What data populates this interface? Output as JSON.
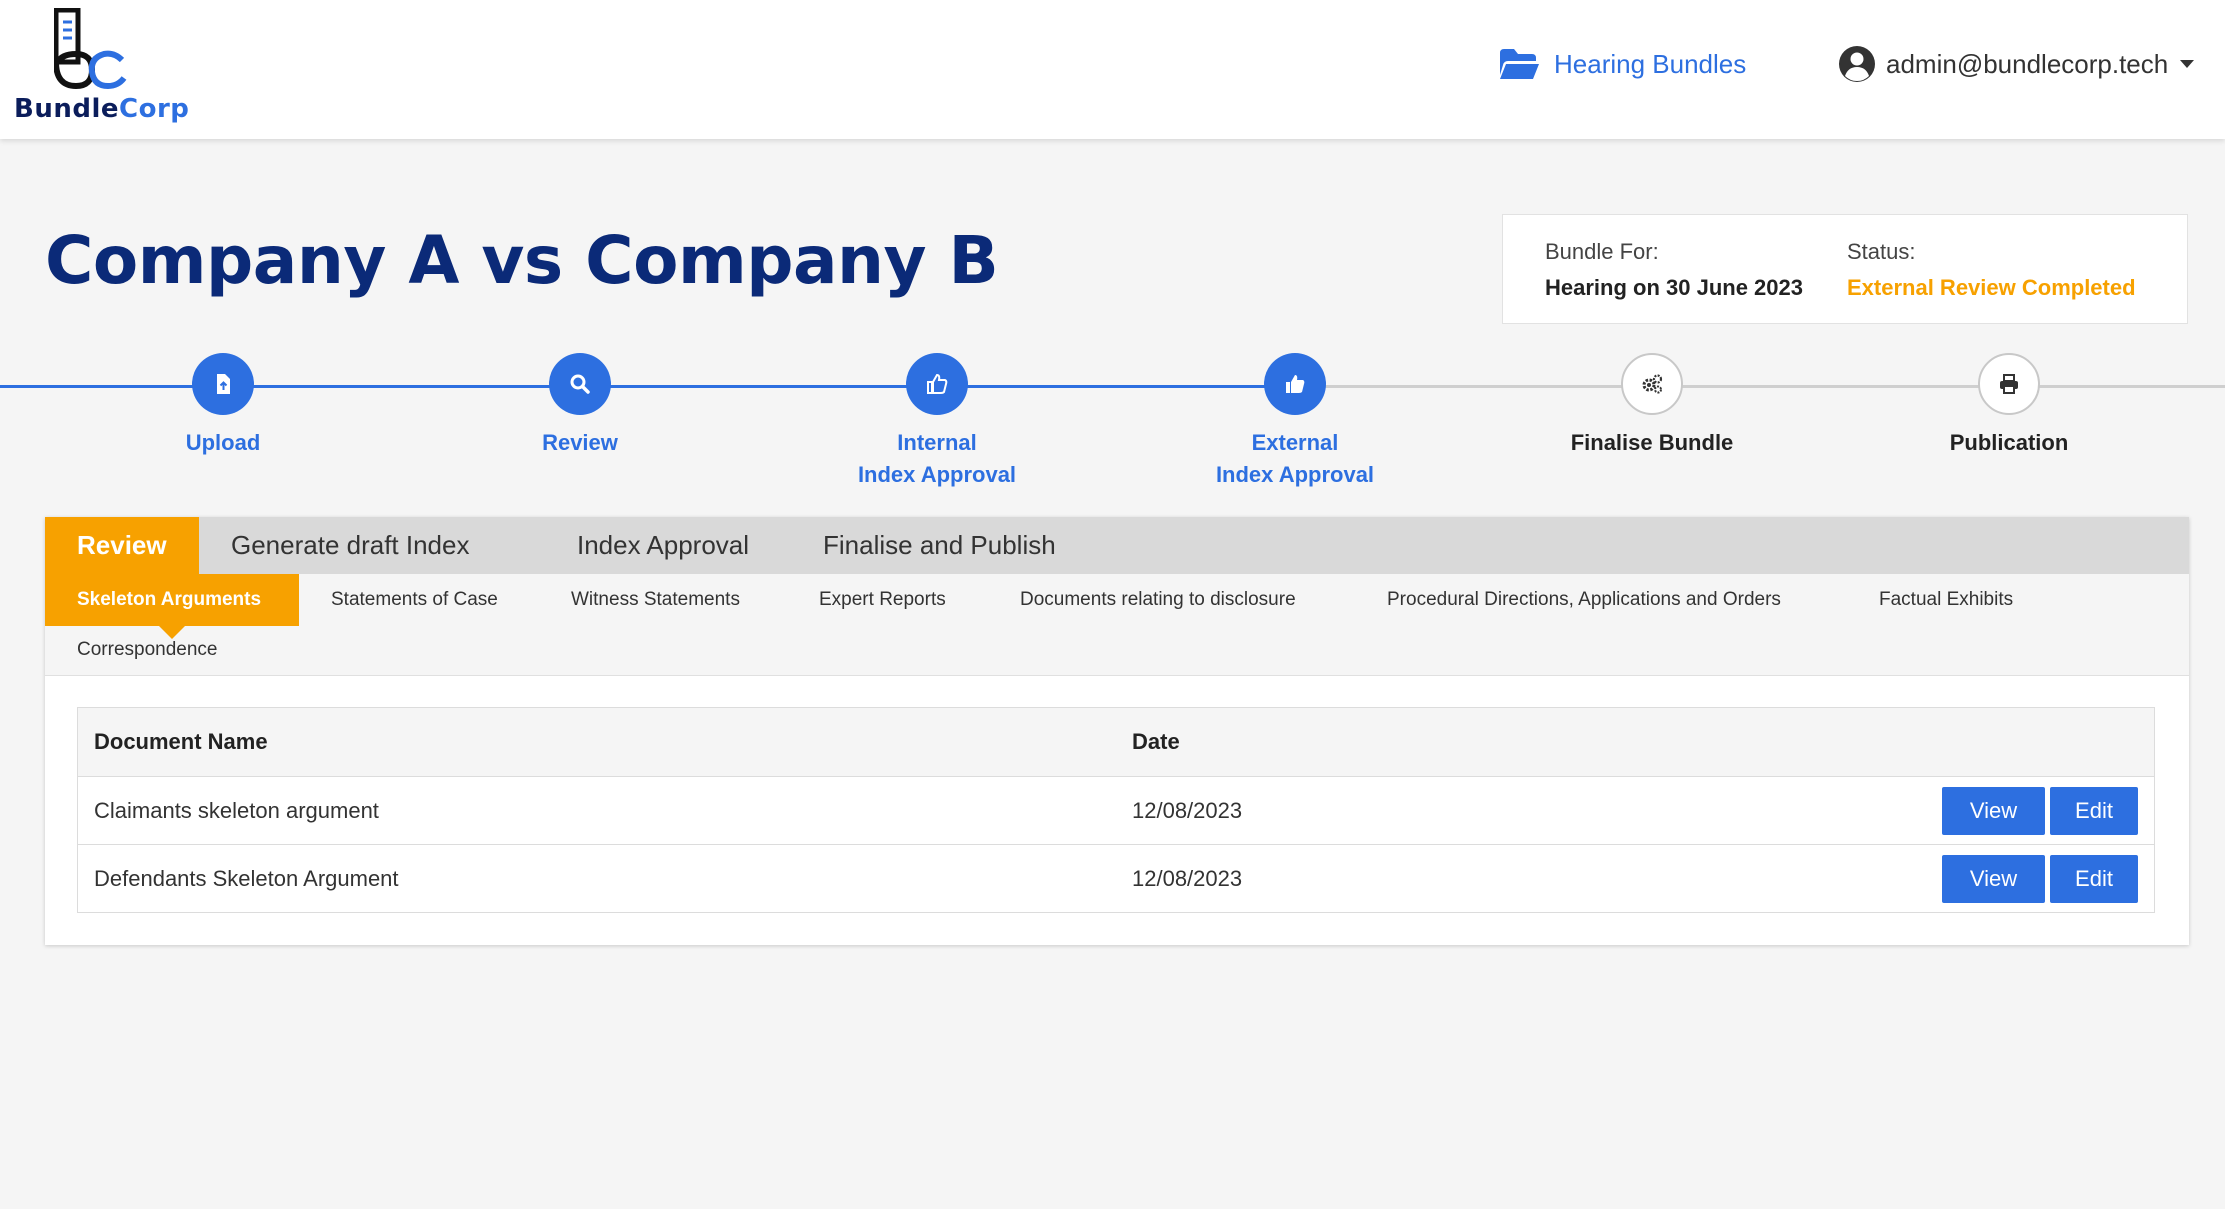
{
  "brand": {
    "name_part1": "Bundle",
    "name_part2": "Corp",
    "accent": "#2d6fe0",
    "navy": "#0b1d5b"
  },
  "nav": {
    "bundles_label": "Hearing Bundles",
    "bundles_icon": "folder-open-icon",
    "user_email": "admin@bundlecorp.tech",
    "user_icon": "user-circle-icon"
  },
  "page": {
    "title": "Company A vs Company B"
  },
  "bundle_info": {
    "bundle_for_label": "Bundle For:",
    "bundle_for_value": "Hearing on 30 June 2023",
    "status_label": "Status:",
    "status_value": "External Review Completed",
    "status_color": "#f7a100"
  },
  "steps": [
    {
      "line1": "Upload",
      "line2": "",
      "icon": "upload-file-icon",
      "state": "active"
    },
    {
      "line1": "Review",
      "line2": "",
      "icon": "search-icon",
      "state": "active"
    },
    {
      "line1": "Internal",
      "line2": "Index Approval",
      "icon": "thumbs-up-icon",
      "state": "active"
    },
    {
      "line1": "External",
      "line2": "Index Approval",
      "icon": "thumbs-up-icon",
      "state": "active"
    },
    {
      "line1": "Finalise Bundle",
      "line2": "",
      "icon": "gears-icon",
      "state": "inactive"
    },
    {
      "line1": "Publication",
      "line2": "",
      "icon": "print-icon",
      "state": "inactive"
    }
  ],
  "tabs": [
    "Review",
    "Generate draft Index",
    "Index Approval",
    "Finalise and Publish"
  ],
  "active_tab": "Review",
  "subtabs": [
    "Skeleton Arguments",
    "Statements of Case",
    "Witness Statements",
    "Expert Reports",
    "Documents relating to disclosure",
    "Procedural Directions, Applications and Orders",
    "Factual Exhibits",
    "Correspondence"
  ],
  "active_subtab": "Skeleton Arguments",
  "table": {
    "headers": {
      "name": "Document Name",
      "date": "Date"
    },
    "rows": [
      {
        "name": "Claimants skeleton argument",
        "date": "12/08/2023",
        "view": "View",
        "edit": "Edit"
      },
      {
        "name": "Defendants Skeleton Argument",
        "date": "12/08/2023",
        "view": "View",
        "edit": "Edit"
      }
    ]
  }
}
